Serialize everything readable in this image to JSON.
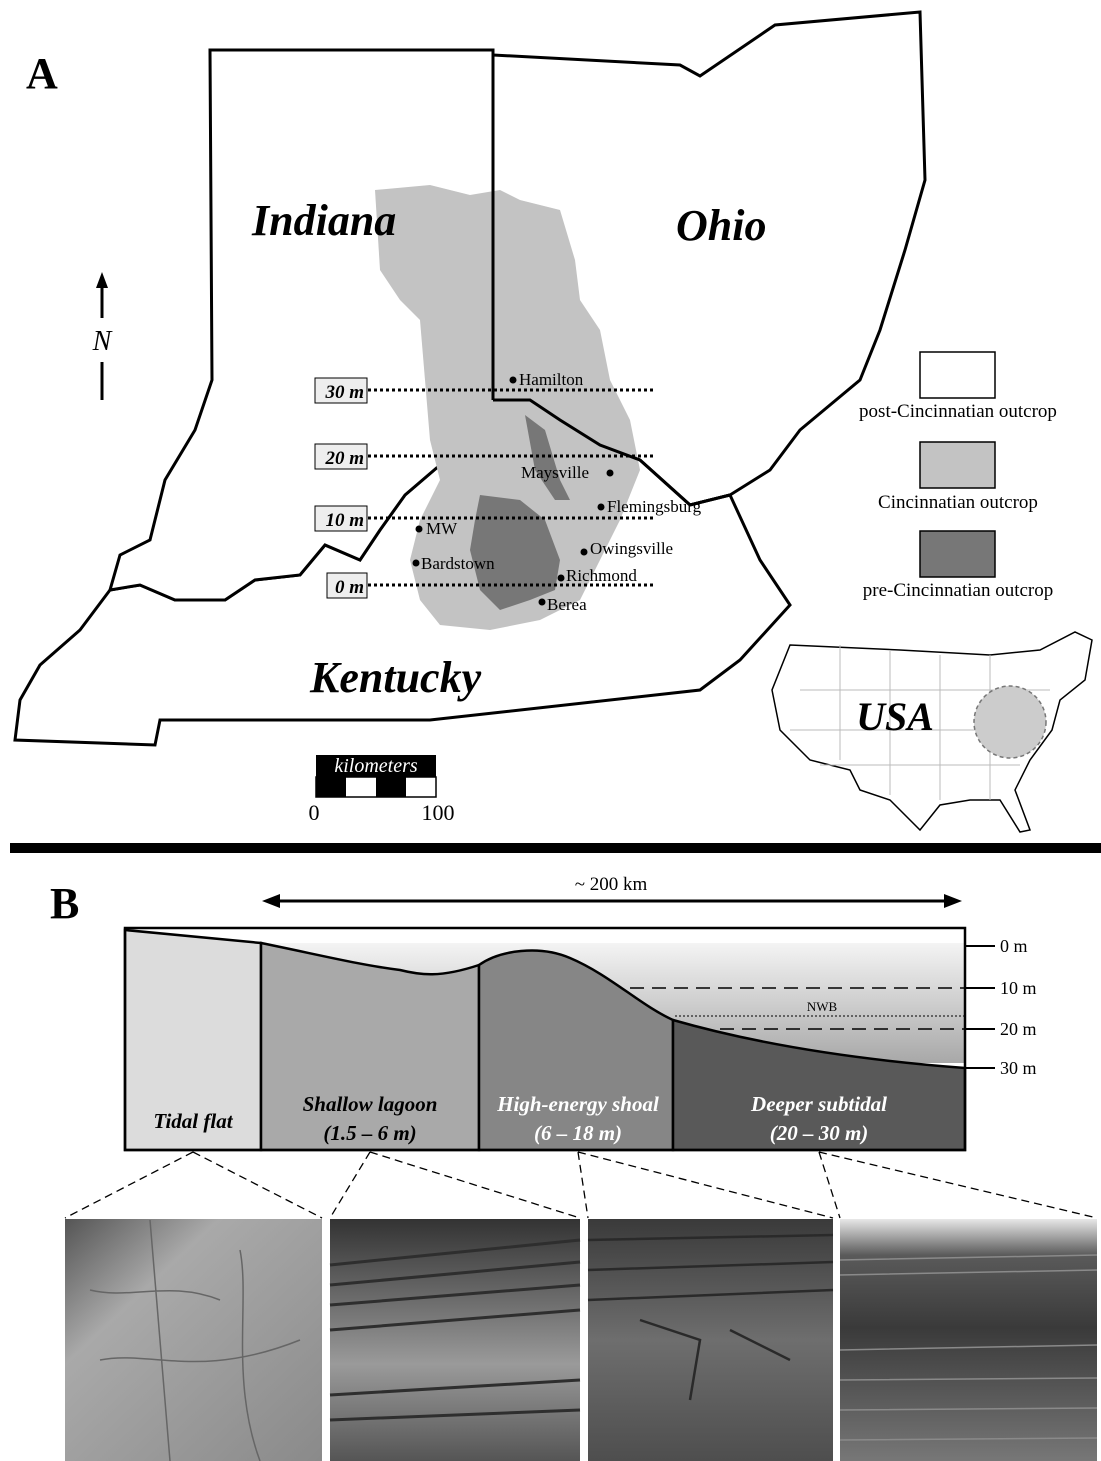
{
  "panel_a": {
    "label": "A",
    "states": [
      "Indiana",
      "Ohio",
      "Kentucky"
    ],
    "north": "N",
    "depth_labels": [
      "30 m",
      "20 m",
      "10 m",
      "0 m"
    ],
    "localities": [
      "Hamilton",
      "Maysville",
      "Flemingsburg",
      "MW",
      "Owingsville",
      "Bardstown",
      "Richmond",
      "Berea"
    ],
    "legend": [
      "post-Cincinnatian outcrop",
      "Cincinnatian outcrop",
      "pre-Cincinnatian outcrop"
    ],
    "inset_label": "USA",
    "scale": {
      "title": "kilometers",
      "ticks": [
        "0",
        "100"
      ]
    }
  },
  "panel_b": {
    "label": "B",
    "width_label": "~ 200 km",
    "depths": [
      "0 m",
      "10 m",
      "20 m",
      "30 m"
    ],
    "nwb": "NWB",
    "zones": [
      {
        "name": "Tidal flat"
      },
      {
        "name": "Shallow lagoon",
        "depth": "(1.5 – 6 m)"
      },
      {
        "name": "High-energy shoal",
        "depth": "(6 – 18 m)"
      },
      {
        "name": "Deeper subtidal",
        "depth": "(20 – 30 m)"
      }
    ]
  }
}
